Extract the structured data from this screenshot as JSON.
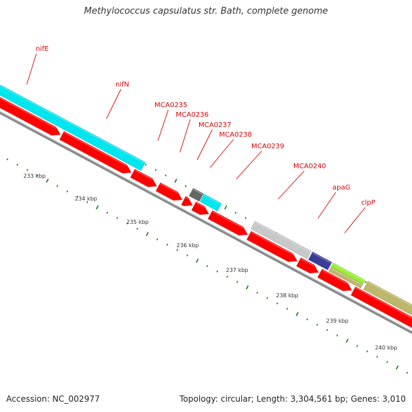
{
  "title": "Methylococcus capsulatus str. Bath, complete genome",
  "footer": {
    "accession": "Accession: NC_002977",
    "summary": "Topology: circular; Length: 3,304,561 bp; Genes: 3,010"
  },
  "scale_labels": [
    "233 kbp",
    "234 kbp",
    "235 kbp",
    "236 kbp",
    "237 kbp",
    "238 kbp",
    "239 kbp",
    "240 kbp"
  ],
  "genes": [
    {
      "name": "nifE",
      "color": "#00e5ee"
    },
    {
      "name": "nifN",
      "color": "#00e5ee"
    },
    {
      "name": "MCA0235",
      "color": "#ff0000"
    },
    {
      "name": "MCA0236",
      "color": "#ff0000"
    },
    {
      "name": "MCA0237",
      "color": "#666666"
    },
    {
      "name": "MCA0238",
      "color": "#00e5ee"
    },
    {
      "name": "MCA0239",
      "color": "#ff0000"
    },
    {
      "name": "MCA0240",
      "color": "#c8c8c8"
    },
    {
      "name": "apaG",
      "color": "#3c3c96"
    },
    {
      "name": "clpP",
      "color": "#99ee33"
    }
  ],
  "colors": {
    "cds": "#ff0000",
    "backbone": "#888888",
    "tick": "#1a7a1a",
    "label": "#e00000",
    "khaki": "#bdb76b"
  }
}
